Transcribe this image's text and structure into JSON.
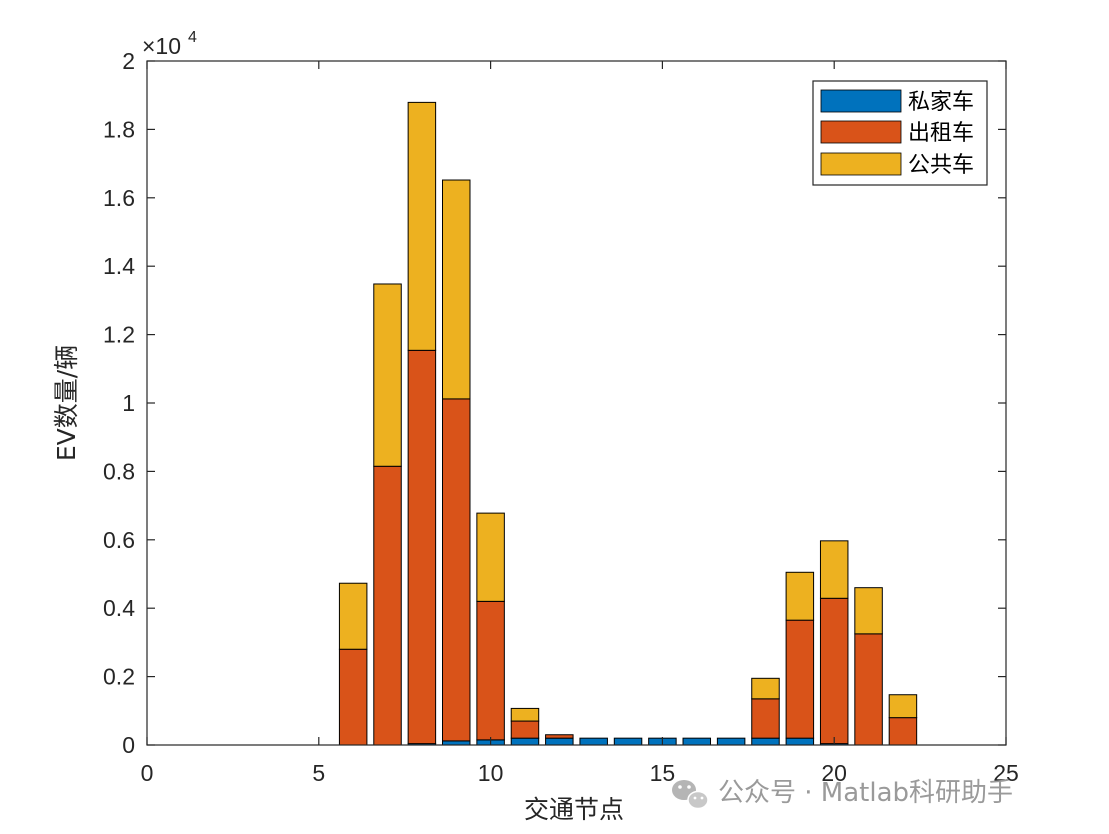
{
  "chart_data": {
    "type": "bar",
    "stacked": true,
    "x": [
      6,
      7,
      8,
      9,
      10,
      11,
      12,
      13,
      14,
      15,
      16,
      17,
      18,
      19,
      20,
      21,
      22
    ],
    "series": [
      {
        "name": "私家车",
        "color": "#0072BD",
        "values": [
          0,
          0,
          40,
          120,
          150,
          200,
          200,
          200,
          200,
          200,
          200,
          200,
          200,
          200,
          40,
          0,
          0
        ]
      },
      {
        "name": "出租车",
        "color": "#D95319",
        "values": [
          2800,
          8150,
          11500,
          10000,
          4050,
          500,
          100,
          0,
          0,
          0,
          0,
          0,
          1150,
          3450,
          4250,
          3250,
          800
        ]
      },
      {
        "name": "公共车",
        "color": "#EDB120",
        "values": [
          1930,
          5330,
          7250,
          6400,
          2580,
          370,
          0,
          0,
          0,
          0,
          0,
          0,
          600,
          1400,
          1680,
          1350,
          670
        ]
      }
    ],
    "xlabel": "交通节点",
    "ylabel": "EV数量/辆",
    "xlim": [
      0,
      25
    ],
    "ylim": [
      0,
      20000
    ],
    "xticks": [
      0,
      5,
      10,
      15,
      20,
      25
    ],
    "xtick_labels": [
      "0",
      "5",
      "10",
      "15",
      "20",
      "25"
    ],
    "yticks": [
      0,
      2000,
      4000,
      6000,
      8000,
      10000,
      12000,
      14000,
      16000,
      18000,
      20000
    ],
    "ytick_labels": [
      "0",
      "0.2",
      "0.4",
      "0.6",
      "0.8",
      "1",
      "1.2",
      "1.4",
      "1.6",
      "1.8",
      "2"
    ],
    "y_exponent_label": "×10",
    "y_exponent": "4",
    "legend": [
      "私家车",
      "出租车",
      "公共车"
    ],
    "legend_position": "top-right",
    "grid": false,
    "bar_edge_color": "#000000"
  },
  "watermark": {
    "text": "公众号 · Matlab科研助手",
    "icon": "wechat-icon"
  }
}
